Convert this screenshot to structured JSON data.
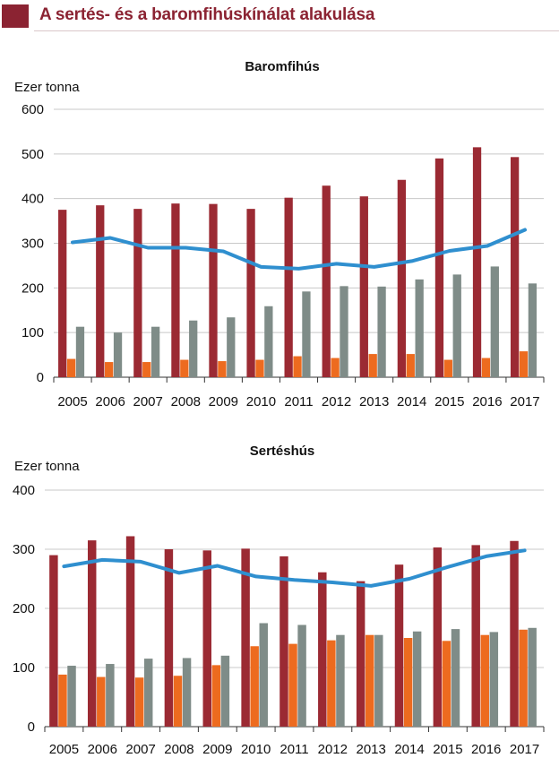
{
  "header": {
    "title": "A sertés- és a baromfihúskínálat alakulása"
  },
  "colors": {
    "header_accent": "#8b2332",
    "series1": "#9b2a33",
    "series2": "#ed6b1f",
    "series3": "#7f8c88",
    "line": "#2f8fcf"
  },
  "chart_data": [
    {
      "type": "bar",
      "title": "Baromfihús",
      "ylabel": "Ezer tonna",
      "xlabel": "",
      "ylim": [
        0,
        600
      ],
      "yticks": [
        0,
        100,
        200,
        300,
        400,
        500,
        600
      ],
      "grid": true,
      "categories": [
        "2005",
        "2006",
        "2007",
        "2008",
        "2009",
        "2010",
        "2011",
        "2012",
        "2013",
        "2014",
        "2015",
        "2016",
        "2017"
      ],
      "series": [
        {
          "name": "series-1",
          "kind": "bar",
          "values": [
            375,
            385,
            377,
            389,
            388,
            377,
            402,
            429,
            405,
            442,
            490,
            515,
            493
          ]
        },
        {
          "name": "series-2",
          "kind": "bar",
          "values": [
            41,
            34,
            34,
            39,
            36,
            39,
            47,
            43,
            52,
            52,
            39,
            43,
            58
          ]
        },
        {
          "name": "series-3",
          "kind": "bar",
          "values": [
            113,
            100,
            113,
            127,
            134,
            159,
            192,
            204,
            203,
            219,
            230,
            248,
            210
          ]
        },
        {
          "name": "series-4",
          "kind": "line",
          "values": [
            302,
            312,
            290,
            290,
            282,
            247,
            243,
            254,
            247,
            260,
            283,
            294,
            330
          ]
        }
      ]
    },
    {
      "type": "bar",
      "title": "Sertéshús",
      "ylabel": "Ezer tonna",
      "xlabel": "",
      "ylim": [
        0,
        400
      ],
      "yticks": [
        0,
        100,
        200,
        300,
        400
      ],
      "grid": true,
      "categories": [
        "2005",
        "2006",
        "2007",
        "2008",
        "2009",
        "2010",
        "2011",
        "2012",
        "2013",
        "2014",
        "2015",
        "2016",
        "2017"
      ],
      "series": [
        {
          "name": "series-1",
          "kind": "bar",
          "values": [
            290,
            315,
            322,
            300,
            298,
            301,
            288,
            261,
            246,
            274,
            303,
            307,
            314
          ]
        },
        {
          "name": "series-2",
          "kind": "bar",
          "values": [
            88,
            84,
            83,
            86,
            104,
            136,
            140,
            146,
            155,
            150,
            145,
            155,
            164
          ]
        },
        {
          "name": "series-3",
          "kind": "bar",
          "values": [
            103,
            106,
            115,
            116,
            120,
            175,
            172,
            155,
            155,
            161,
            165,
            160,
            167
          ]
        },
        {
          "name": "series-4",
          "kind": "line",
          "values": [
            271,
            282,
            279,
            260,
            272,
            254,
            248,
            244,
            238,
            250,
            270,
            288,
            298
          ]
        }
      ]
    }
  ]
}
